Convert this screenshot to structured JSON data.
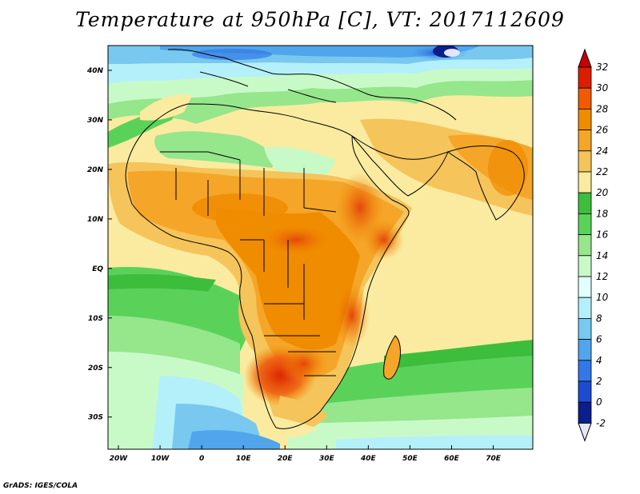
{
  "title": "Temperature at 950hPa [C], VT: 2017112609",
  "credit": "GrADS: IGES/COLA",
  "variable_unit": "C",
  "lat_labels": [
    {
      "text": "40N",
      "lat": 40
    },
    {
      "text": "30N",
      "lat": 30
    },
    {
      "text": "20N",
      "lat": 20
    },
    {
      "text": "10N",
      "lat": 10
    },
    {
      "text": "EQ",
      "lat": 0
    },
    {
      "text": "10S",
      "lat": -10
    },
    {
      "text": "20S",
      "lat": -20
    },
    {
      "text": "30S",
      "lat": -30
    }
  ],
  "lon_labels": [
    {
      "text": "20W",
      "lon": -20
    },
    {
      "text": "10W",
      "lon": -10
    },
    {
      "text": "0",
      "lon": 0
    },
    {
      "text": "10E",
      "lon": 10
    },
    {
      "text": "20E",
      "lon": 20
    },
    {
      "text": "30E",
      "lon": 30
    },
    {
      "text": "40E",
      "lon": 40
    },
    {
      "text": "50E",
      "lon": 50
    },
    {
      "text": "60E",
      "lon": 60
    },
    {
      "text": "70E",
      "lon": 70
    }
  ],
  "map_extent": {
    "lon_min": -22.5,
    "lon_max": 79.5,
    "lat_min": -36.5,
    "lat_max": 45
  },
  "colorbar": {
    "levels": [
      "32",
      "30",
      "28",
      "26",
      "24",
      "22",
      "20",
      "18",
      "16",
      "14",
      "12",
      "10",
      "8",
      "6",
      "4",
      "2",
      "0",
      "-2"
    ],
    "colors": [
      "#dc1e00",
      "#f05a00",
      "#f08c00",
      "#f5a528",
      "#f5c45a",
      "#faeba0",
      "#3cbe3c",
      "#5ad25a",
      "#96e68c",
      "#c8fac8",
      "#e1ffff",
      "#b4f0fa",
      "#78c8f0",
      "#50a5eb",
      "#3278e6",
      "#1e4bd2",
      "#0a1e8c"
    ],
    "top_arrow_color": "#c80000",
    "bottom_arrow_color": "#e6e6fa"
  }
}
